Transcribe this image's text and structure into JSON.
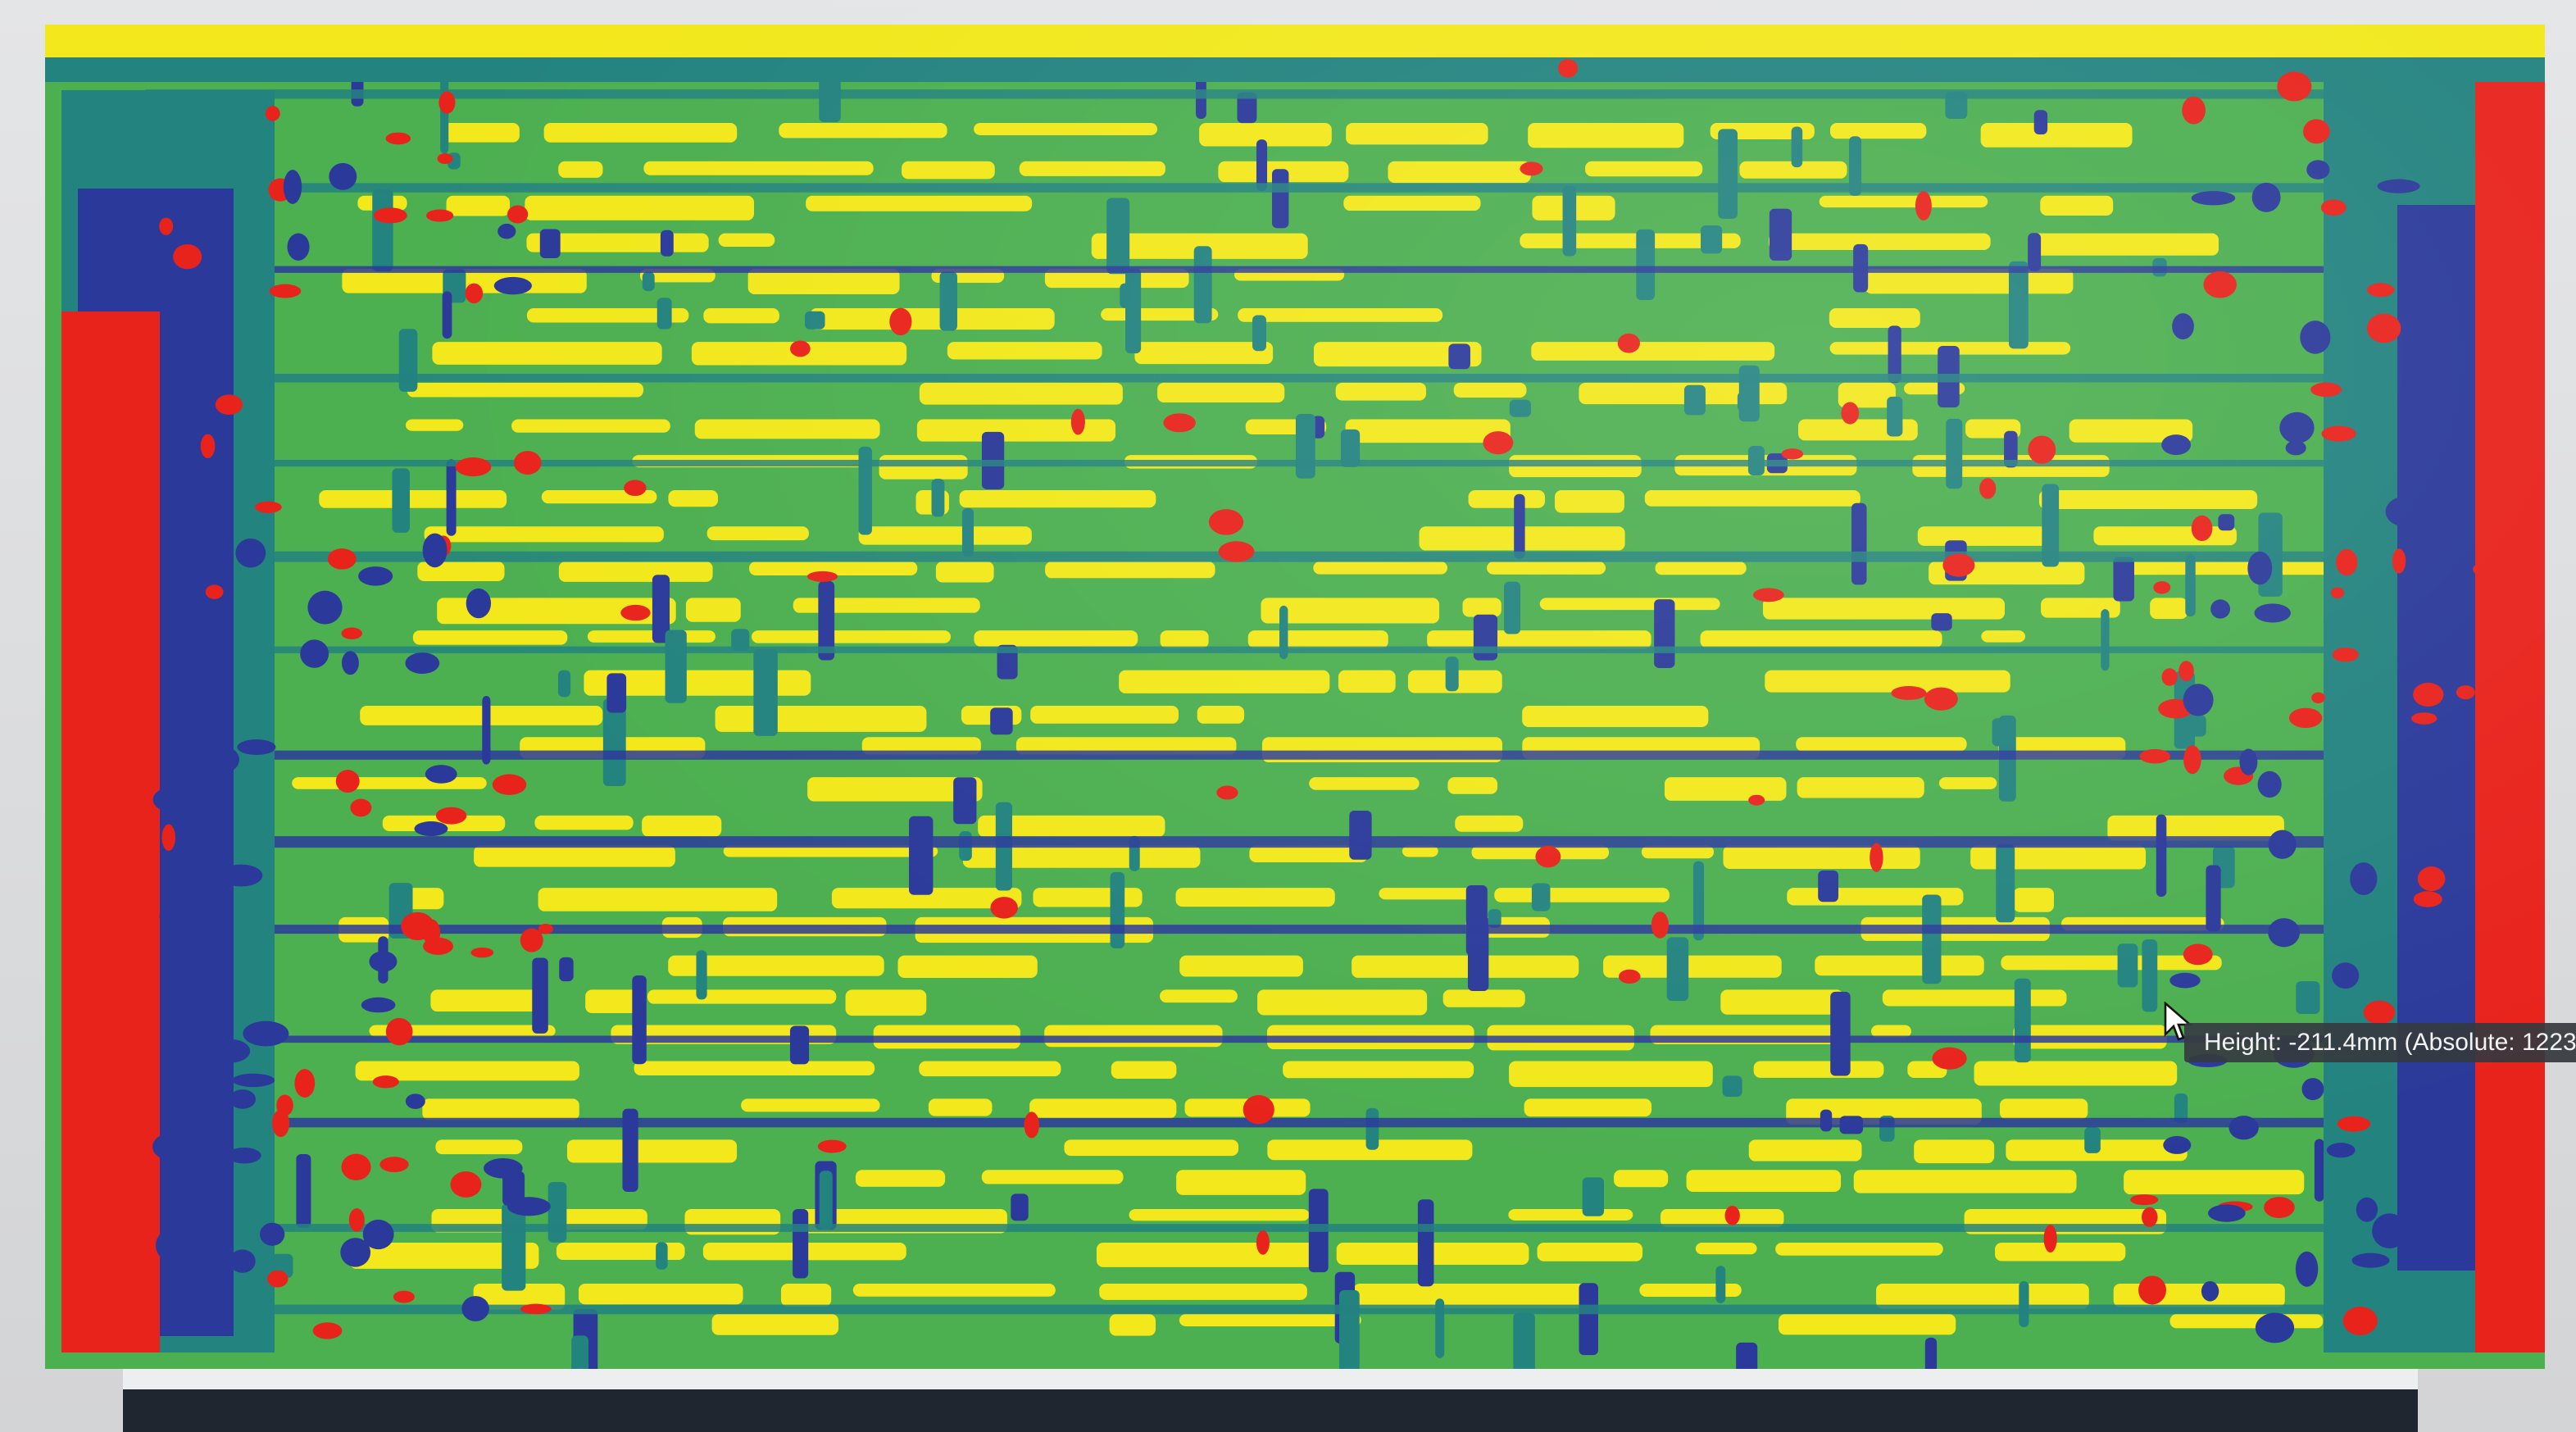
{
  "tooltip": {
    "text": "Height: -211.4mm (Absolute: 1223m"
  },
  "heightmap": {
    "palette": {
      "highest": "#f2e81b",
      "high": "#4caf50",
      "mid": "#23837f",
      "low": "#2b3a9a",
      "lowest": "#e8231c"
    }
  },
  "icons": {
    "cursor": "pointer-arrow-icon"
  }
}
